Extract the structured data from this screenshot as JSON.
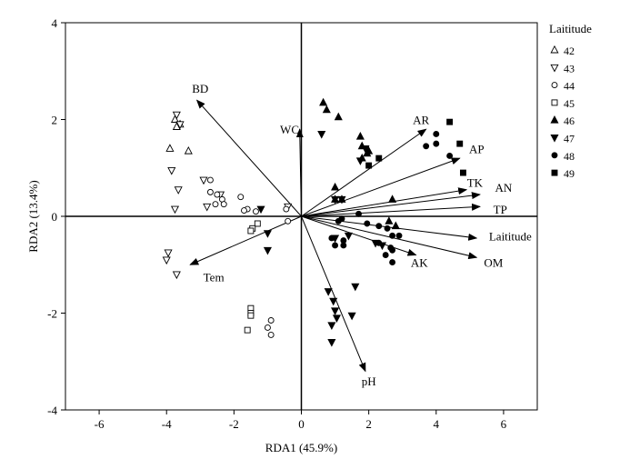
{
  "chart_data": {
    "type": "scatter",
    "subtype": "rda-biplot",
    "xlabel": "RDA1 (45.9%)",
    "ylabel": "RDA2 (13.4%)",
    "xlim": [
      -7,
      7
    ],
    "ylim": [
      -4,
      4
    ],
    "xticks": [
      -6,
      -4,
      -2,
      0,
      2,
      4,
      6
    ],
    "yticks": [
      -4,
      -2,
      0,
      2,
      4
    ],
    "grid": false,
    "zero_lines": true,
    "legend": {
      "title": "Laititude",
      "placement": "right",
      "entries": [
        {
          "label": "42",
          "marker": "triangle-up-open"
        },
        {
          "label": "43",
          "marker": "triangle-down-open"
        },
        {
          "label": "44",
          "marker": "circle-open"
        },
        {
          "label": "45",
          "marker": "square-open"
        },
        {
          "label": "46",
          "marker": "triangle-up-filled"
        },
        {
          "label": "47",
          "marker": "triangle-down-filled"
        },
        {
          "label": "48",
          "marker": "circle-filled"
        },
        {
          "label": "49",
          "marker": "square-filled"
        }
      ]
    },
    "vectors": [
      {
        "label": "BD",
        "x": -3.1,
        "y": 2.4,
        "lx": -3.0,
        "ly": 2.65
      },
      {
        "label": "WC",
        "x": -0.05,
        "y": 1.8,
        "lx": -0.35,
        "ly": 1.8
      },
      {
        "label": "AR",
        "x": 3.7,
        "y": 1.8,
        "lx": 3.55,
        "ly": 2.0
      },
      {
        "label": "AP",
        "x": 4.7,
        "y": 1.2,
        "lx": 5.2,
        "ly": 1.4
      },
      {
        "label": "TK",
        "x": 4.9,
        "y": 0.55,
        "lx": 5.15,
        "ly": 0.7
      },
      {
        "label": "AN",
        "x": 5.3,
        "y": 0.45,
        "lx": 6.0,
        "ly": 0.6
      },
      {
        "label": "TP",
        "x": 5.3,
        "y": 0.2,
        "lx": 5.9,
        "ly": 0.15
      },
      {
        "label": "Laititude",
        "x": 5.2,
        "y": -0.45,
        "lx": 6.2,
        "ly": -0.4
      },
      {
        "label": "OM",
        "x": 5.2,
        "y": -0.85,
        "lx": 5.7,
        "ly": -0.95
      },
      {
        "label": "AK",
        "x": 3.4,
        "y": -0.8,
        "lx": 3.5,
        "ly": -0.95
      },
      {
        "label": "Tem",
        "x": -3.3,
        "y": -1.0,
        "lx": -2.6,
        "ly": -1.25
      },
      {
        "label": "pH",
        "x": 1.9,
        "y": -3.2,
        "lx": 2.0,
        "ly": -3.4
      }
    ],
    "series": [
      {
        "name": "42",
        "marker": "triangle-up-open",
        "points": [
          [
            -3.6,
            1.9
          ],
          [
            -3.7,
            1.85
          ],
          [
            -3.35,
            1.35
          ],
          [
            -3.9,
            1.4
          ],
          [
            -3.75,
            2.0
          ]
        ]
      },
      {
        "name": "43",
        "marker": "triangle-down-open",
        "points": [
          [
            -3.7,
            2.1
          ],
          [
            -3.6,
            1.9
          ],
          [
            -3.85,
            0.95
          ],
          [
            -3.65,
            0.55
          ],
          [
            -3.75,
            0.15
          ],
          [
            -3.95,
            -0.75
          ],
          [
            -4.0,
            -0.9
          ],
          [
            -3.7,
            -1.2
          ],
          [
            -2.9,
            0.75
          ],
          [
            -2.4,
            0.45
          ],
          [
            -2.8,
            0.2
          ],
          [
            -0.4,
            0.2
          ]
        ]
      },
      {
        "name": "44",
        "marker": "circle-open",
        "points": [
          [
            -2.7,
            0.75
          ],
          [
            -2.7,
            0.5
          ],
          [
            -2.5,
            0.45
          ],
          [
            -2.35,
            0.35
          ],
          [
            -2.3,
            0.25
          ],
          [
            -2.55,
            0.25
          ],
          [
            -1.8,
            0.4
          ],
          [
            -1.6,
            0.15
          ],
          [
            -1.7,
            0.12
          ],
          [
            -1.35,
            0.1
          ],
          [
            -0.45,
            0.15
          ],
          [
            -0.4,
            -0.1
          ],
          [
            -1.0,
            -2.3
          ],
          [
            -0.9,
            -2.45
          ],
          [
            -0.9,
            -2.15
          ]
        ]
      },
      {
        "name": "45",
        "marker": "square-open",
        "points": [
          [
            -1.3,
            -0.15
          ],
          [
            -1.45,
            -0.25
          ],
          [
            -1.5,
            -0.3
          ],
          [
            -1.5,
            -1.9
          ],
          [
            -1.5,
            -2.0
          ],
          [
            -1.6,
            -2.35
          ],
          [
            -1.5,
            -2.05
          ]
        ]
      },
      {
        "name": "46",
        "marker": "triangle-up-filled",
        "points": [
          [
            0.65,
            2.35
          ],
          [
            0.75,
            2.2
          ],
          [
            1.1,
            2.05
          ],
          [
            1.75,
            1.65
          ],
          [
            1.8,
            1.45
          ],
          [
            2.0,
            1.35
          ],
          [
            1.8,
            1.2
          ],
          [
            1.95,
            1.3
          ],
          [
            1.0,
            0.6
          ],
          [
            1.0,
            0.35
          ],
          [
            1.2,
            0.35
          ],
          [
            2.7,
            0.35
          ],
          [
            2.6,
            -0.1
          ],
          [
            2.8,
            -0.2
          ]
        ]
      },
      {
        "name": "47",
        "marker": "triangle-down-filled",
        "points": [
          [
            0.6,
            1.7
          ],
          [
            1.9,
            1.4
          ],
          [
            1.75,
            1.15
          ],
          [
            1.0,
            0.35
          ],
          [
            1.2,
            0.35
          ],
          [
            -1.2,
            0.15
          ],
          [
            -1.0,
            -0.35
          ],
          [
            -1.0,
            -0.7
          ],
          [
            2.2,
            -0.55
          ],
          [
            0.8,
            -1.55
          ],
          [
            0.95,
            -1.75
          ],
          [
            1.0,
            -1.95
          ],
          [
            1.05,
            -2.1
          ],
          [
            0.9,
            -2.25
          ],
          [
            1.5,
            -2.05
          ],
          [
            1.6,
            -1.45
          ],
          [
            0.9,
            -2.6
          ],
          [
            1.0,
            -0.45
          ],
          [
            1.4,
            -0.4
          ],
          [
            2.4,
            -0.6
          ]
        ]
      },
      {
        "name": "48",
        "marker": "circle-filled",
        "points": [
          [
            3.7,
            1.45
          ],
          [
            4.0,
            1.5
          ],
          [
            4.0,
            1.7
          ],
          [
            4.4,
            1.25
          ],
          [
            1.7,
            0.05
          ],
          [
            1.2,
            -0.05
          ],
          [
            1.1,
            -0.1
          ],
          [
            1.95,
            -0.15
          ],
          [
            2.3,
            -0.2
          ],
          [
            2.55,
            -0.25
          ],
          [
            2.7,
            -0.4
          ],
          [
            2.9,
            -0.4
          ],
          [
            2.3,
            -0.55
          ],
          [
            2.65,
            -0.65
          ],
          [
            2.7,
            -0.7
          ],
          [
            2.5,
            -0.8
          ],
          [
            2.7,
            -0.95
          ],
          [
            0.9,
            -0.45
          ],
          [
            1.25,
            -0.5
          ],
          [
            1.25,
            -0.6
          ],
          [
            1.0,
            -0.6
          ]
        ]
      },
      {
        "name": "49",
        "marker": "square-filled",
        "points": [
          [
            4.4,
            1.95
          ],
          [
            4.7,
            1.5
          ],
          [
            4.8,
            0.9
          ],
          [
            2.0,
            1.05
          ],
          [
            2.3,
            1.2
          ]
        ]
      }
    ]
  }
}
